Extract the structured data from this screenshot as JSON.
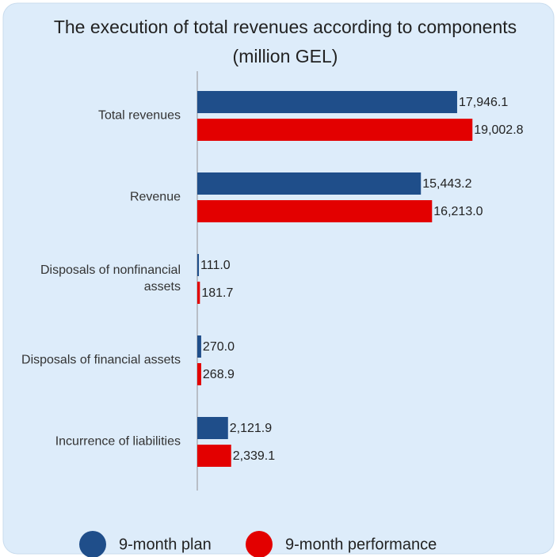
{
  "chart_data": {
    "type": "barh",
    "title": "The execution of total revenues according to components",
    "subtitle": "(million GEL)",
    "categories": [
      "Total revenues",
      "Revenue",
      "Disposals of nonfinancial assets",
      "Disposals of financial assets",
      "Incurrence of liabilities"
    ],
    "series": [
      {
        "name": "9-month plan",
        "color": "#1f4e8a",
        "values": [
          17946.1,
          15443.2,
          111.0,
          270.0,
          2121.9
        ],
        "value_labels": [
          "17,946.1",
          "15,443.2",
          "111.0",
          "270.0",
          "2,121.9"
        ]
      },
      {
        "name": "9-month performance",
        "color": "#e30000",
        "values": [
          19002.8,
          16213.0,
          181.7,
          268.9,
          2339.1
        ],
        "value_labels": [
          "19,002.8",
          "16,213.0",
          "181.7",
          "268.9",
          "2,339.1"
        ]
      }
    ],
    "xlim": [
      0,
      24000
    ]
  }
}
